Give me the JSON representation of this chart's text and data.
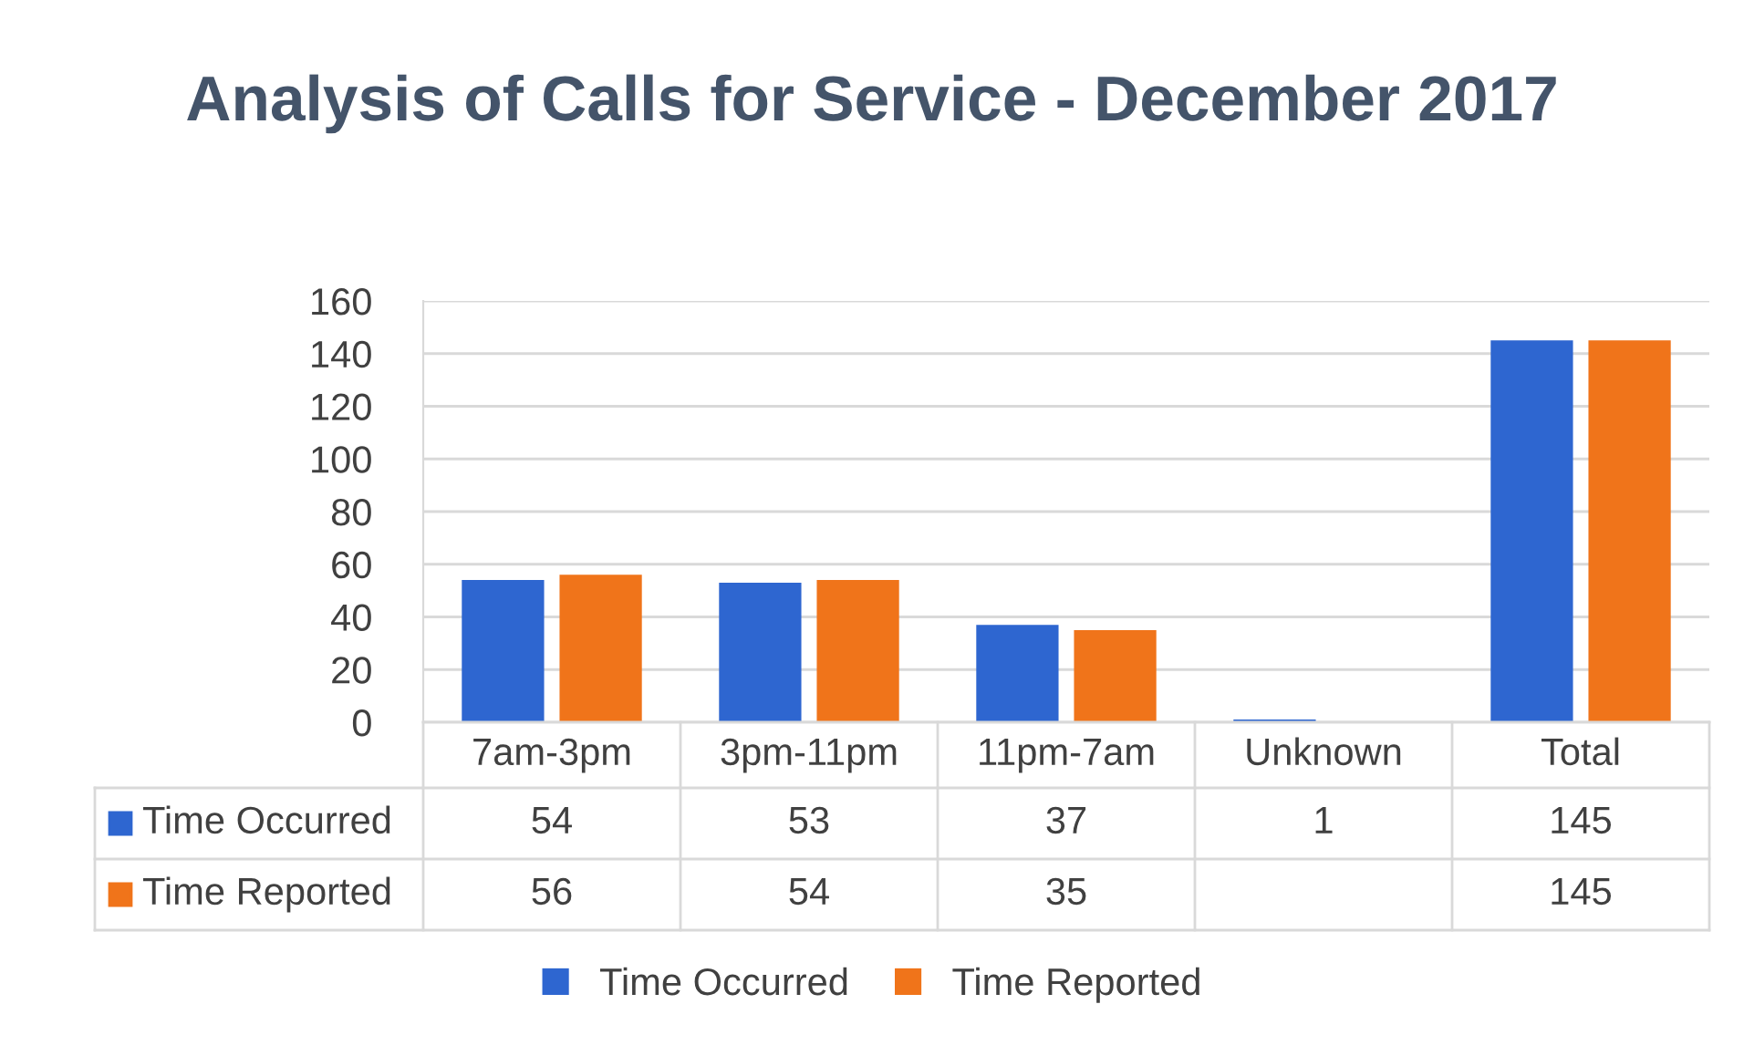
{
  "chart_data": {
    "type": "bar",
    "title": "Analysis of Calls for Service - December 2017",
    "categories": [
      "7am-3pm",
      "3pm-11pm",
      "11pm-7am",
      "Unknown",
      "Total"
    ],
    "series": [
      {
        "name": "Time Occurred",
        "color": "#2e66d0",
        "values": [
          54,
          53,
          37,
          1,
          145
        ]
      },
      {
        "name": "Time Reported",
        "color": "#f0741a",
        "values": [
          56,
          54,
          35,
          null,
          145
        ]
      }
    ],
    "ylim": [
      0,
      160
    ],
    "yticks": [
      0,
      20,
      40,
      60,
      80,
      100,
      120,
      140,
      160
    ],
    "grid": "y",
    "legend": "bottom",
    "data_labels": true
  }
}
